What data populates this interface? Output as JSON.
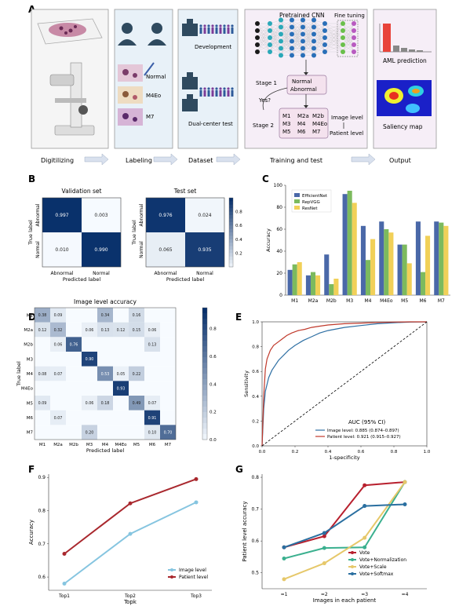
{
  "panel_letters": [
    "A",
    "B",
    "C",
    "D",
    "E",
    "F",
    "G"
  ],
  "panelA": {
    "labels": {
      "normal": "Normal",
      "m4eo": "M4Eo",
      "m7": "M7"
    },
    "dataset": {
      "development": "Development",
      "dual_center": "Dual-center test"
    },
    "training": {
      "pretrained": "Pretrained CNN",
      "fine_tuning": "Fine tuning",
      "stage1": "Stage 1",
      "stage2": "Stage 2",
      "normal": "Normal",
      "abnormal": "Abnormal",
      "yes": "Yes?",
      "subtypes": [
        "M1",
        "M2a",
        "M2b",
        "M3",
        "M4",
        "M4Eo",
        "M5",
        "M6",
        "M7"
      ],
      "image_level": "Image level",
      "patient_level": "Patient level"
    },
    "output": {
      "aml_prediction": "AML prediction",
      "saliency_map": "Saliency map"
    },
    "steps": [
      "Digitilizing",
      "Labeling",
      "Dataset",
      "Training and test",
      "Output"
    ]
  },
  "chart_data": [
    {
      "id": "B-validation",
      "type": "heatmap",
      "title": "Validation set",
      "xlabel": "Predicted label",
      "ylabel": "True label",
      "x_categories": [
        "Abnormal",
        "Normal"
      ],
      "y_categories": [
        "Abnormal",
        "Normal"
      ],
      "values": [
        [
          0.997,
          0.003
        ],
        [
          0.01,
          0.99
        ]
      ],
      "labels": [
        [
          "0.997",
          "0.003"
        ],
        [
          "0.010",
          "0.990"
        ]
      ]
    },
    {
      "id": "B-test",
      "type": "heatmap",
      "title": "Test set",
      "xlabel": "Predicted label",
      "ylabel": "True label",
      "x_categories": [
        "Abnormal",
        "Normal"
      ],
      "y_categories": [
        "Abnormal",
        "Normal"
      ],
      "values": [
        [
          0.976,
          0.024
        ],
        [
          0.065,
          0.935
        ]
      ],
      "labels": [
        [
          "0.976",
          "0.024"
        ],
        [
          "0.065",
          "0.935"
        ]
      ],
      "colorbar_ticks": [
        "0.8",
        "0.6",
        "0.4",
        "0.2"
      ]
    },
    {
      "id": "C",
      "type": "bar",
      "ylabel": "Accuracy",
      "ylim": [
        0,
        100
      ],
      "y_ticks": [
        "0",
        "20",
        "40",
        "60",
        "80",
        "100"
      ],
      "categories": [
        "M1",
        "M2a",
        "M2b",
        "M3",
        "M4",
        "M4Eo",
        "M5",
        "M6",
        "M7"
      ],
      "series": [
        {
          "name": "EfficientNet",
          "color": "#4a68a8",
          "values": [
            23,
            18,
            37,
            92,
            63,
            67,
            46,
            67,
            67
          ]
        },
        {
          "name": "RepVGG",
          "color": "#7cba5e",
          "values": [
            28,
            21,
            10,
            95,
            32,
            60,
            46,
            21,
            66
          ]
        },
        {
          "name": "ResNet",
          "color": "#f1d058",
          "values": [
            30,
            18,
            15,
            84,
            51,
            57,
            29,
            54,
            63
          ]
        }
      ]
    },
    {
      "id": "D",
      "type": "heatmap",
      "title": "Image level accuracy",
      "xlabel": "Predicted label",
      "ylabel": "True label",
      "x_categories": [
        "M1",
        "M2a",
        "M2b",
        "M3",
        "M4",
        "M4Eo",
        "M5",
        "M6",
        "M7"
      ],
      "y_categories": [
        "M1",
        "M2a",
        "M2b",
        "M3",
        "M4",
        "M4Eo",
        "M5",
        "M6",
        "M7"
      ],
      "values": [
        [
          0.38,
          0.09,
          0,
          0,
          0.34,
          0,
          0.16,
          0,
          0
        ],
        [
          0.12,
          0.32,
          0,
          0.06,
          0.13,
          0.12,
          0.15,
          0.06,
          0
        ],
        [
          0,
          0.06,
          0.76,
          0,
          0,
          0,
          0,
          0.13,
          0
        ],
        [
          0,
          0,
          0,
          0.9,
          0,
          0,
          0,
          0,
          0
        ],
        [
          0.08,
          0.07,
          0,
          0,
          0.53,
          0.05,
          0.22,
          0,
          0
        ],
        [
          0,
          0,
          0,
          0,
          0,
          0.93,
          0,
          0,
          0
        ],
        [
          0.09,
          0,
          0,
          0.06,
          0.18,
          0,
          0.49,
          0.07,
          0
        ],
        [
          0,
          0.07,
          0,
          0,
          0,
          0,
          0,
          0.91,
          0
        ],
        [
          0,
          0,
          0,
          0.2,
          0,
          0,
          0,
          0.1,
          0.7
        ]
      ],
      "labels": [
        [
          "0.38",
          "0.09",
          "",
          "",
          "0.34",
          "",
          "0.16",
          "",
          ""
        ],
        [
          "0.12",
          "0.32",
          "",
          "0.06",
          "0.13",
          "0.12",
          "0.15",
          "0.06",
          ""
        ],
        [
          "",
          "0.06",
          "0.76",
          "",
          "",
          "",
          "",
          "0.13",
          ""
        ],
        [
          "",
          "",
          "",
          "0.90",
          "",
          "",
          "",
          "",
          ""
        ],
        [
          "0.08",
          "0.07",
          "",
          "",
          "0.53",
          "0.05",
          "0.22",
          "",
          ""
        ],
        [
          "",
          "",
          "",
          "",
          "",
          "0.93",
          "",
          "",
          ""
        ],
        [
          "0.09",
          "",
          "",
          "0.06",
          "0.18",
          "",
          "0.49",
          "0.07",
          ""
        ],
        [
          "",
          "0.07",
          "",
          "",
          "",
          "",
          "",
          "0.91",
          ""
        ],
        [
          "",
          "",
          "",
          "0.20",
          "",
          "",
          "",
          "0.10",
          "0.70"
        ]
      ],
      "colorbar_ticks": [
        "0.8",
        "0.6",
        "0.4",
        "0.2",
        "0.0"
      ]
    },
    {
      "id": "E",
      "type": "line",
      "xlabel": "1-specificity",
      "ylabel": "Sensitivity",
      "xlim": [
        0,
        1
      ],
      "ylim": [
        0,
        1
      ],
      "x_ticks": [
        "0.0",
        "0.2",
        "0.4",
        "0.6",
        "0.8",
        "1.0"
      ],
      "y_ticks": [
        "0.0",
        "0.2",
        "0.4",
        "0.6",
        "0.8",
        "1.0"
      ],
      "legend_title": "AUC (95% CI)",
      "series": [
        {
          "name": "Image level:  0.885 (0.874–0.897)",
          "color": "#2e6fa3",
          "x": [
            0,
            0.01,
            0.02,
            0.04,
            0.06,
            0.08,
            0.1,
            0.13,
            0.16,
            0.2,
            0.25,
            0.3,
            0.35,
            0.4,
            0.5,
            0.6,
            0.7,
            0.8,
            0.9,
            1.0
          ],
          "y": [
            0,
            0.3,
            0.44,
            0.55,
            0.61,
            0.65,
            0.69,
            0.73,
            0.77,
            0.81,
            0.85,
            0.88,
            0.91,
            0.93,
            0.955,
            0.97,
            0.985,
            0.993,
            0.998,
            1.0
          ]
        },
        {
          "name": "Patient level:  0.921 (0.915–0.927)",
          "color": "#c0392b",
          "x": [
            0,
            0.01,
            0.02,
            0.03,
            0.05,
            0.07,
            0.1,
            0.12,
            0.15,
            0.18,
            0.22,
            0.26,
            0.3,
            0.35,
            0.4,
            0.5,
            0.6,
            0.7,
            0.8,
            0.9,
            1.0
          ],
          "y": [
            0,
            0.4,
            0.62,
            0.7,
            0.77,
            0.81,
            0.84,
            0.86,
            0.89,
            0.91,
            0.93,
            0.94,
            0.955,
            0.965,
            0.975,
            0.985,
            0.99,
            0.995,
            0.998,
            1.0,
            1.0
          ]
        },
        {
          "name": "chance",
          "color": "#000000",
          "x": [
            0,
            1
          ],
          "y": [
            0,
            1
          ]
        }
      ]
    },
    {
      "id": "F",
      "type": "line",
      "xlabel": "Topk",
      "ylabel": "Accuracy",
      "ylim": [
        0.56,
        0.91
      ],
      "y_ticks": [
        "0.6",
        "0.7",
        "0.8",
        "0.9"
      ],
      "categories": [
        "Top1",
        "Top2",
        "Top3"
      ],
      "series": [
        {
          "name": "Image level",
          "color": "#86c5e0",
          "values": [
            0.58,
            0.73,
            0.825
          ]
        },
        {
          "name": "Patient level",
          "color": "#a9282e",
          "values": [
            0.67,
            0.822,
            0.895
          ]
        }
      ]
    },
    {
      "id": "G",
      "type": "line",
      "xlabel": "Images in each patient",
      "ylabel": "Patient level accuracy",
      "ylim": [
        0.45,
        0.81
      ],
      "y_ticks": [
        "0.5",
        "0.6",
        "0.7",
        "0.8"
      ],
      "categories": [
        "=1",
        "=2",
        "=3",
        "=4"
      ],
      "series": [
        {
          "name": "Vote",
          "color": "#b8202e",
          "values": [
            0.58,
            0.615,
            0.775,
            0.785
          ]
        },
        {
          "name": "Vote+Normalization",
          "color": "#3bb08f",
          "values": [
            0.545,
            0.578,
            0.58,
            0.785
          ]
        },
        {
          "name": "Vote+Scale",
          "color": "#e6c86a",
          "values": [
            0.48,
            0.53,
            0.61,
            0.785
          ]
        },
        {
          "name": "Vote+Softmax",
          "color": "#2a6fa0",
          "values": [
            0.58,
            0.625,
            0.71,
            0.715
          ]
        }
      ]
    }
  ]
}
